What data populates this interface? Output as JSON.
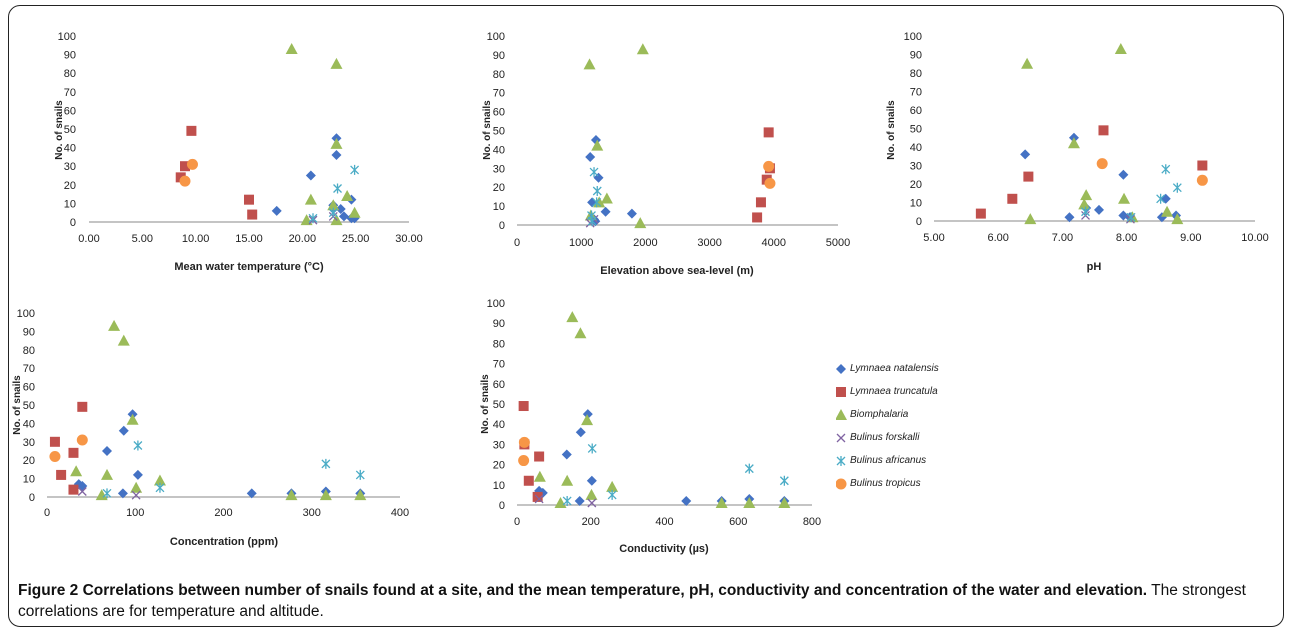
{
  "legend_entries": [
    {
      "name": "Lymnaea natalensis",
      "marker": "diamond",
      "color": "#4472C4"
    },
    {
      "name": "Lymnaea truncatula",
      "marker": "square",
      "color": "#C0504D"
    },
    {
      "name": "Biomphalaria",
      "marker": "triangle",
      "color": "#9BBB59"
    },
    {
      "name": "Bulinus forskalli",
      "marker": "x",
      "color": "#8064A2"
    },
    {
      "name": "Bulinus africanus",
      "marker": "star",
      "color": "#4BACC6"
    },
    {
      "name": "Bulinus tropicus",
      "marker": "circle",
      "color": "#F79646"
    }
  ],
  "caption": {
    "bold": "Figure 2 Correlations between number of snails found at a site, and the mean temperature, pH, conductivity and concentration of the water and elevation.",
    "text": " The strongest correlations are for temperature and altitude."
  },
  "chart_data": [
    {
      "type": "scatter",
      "xlabel": "Mean water temperature (°C)",
      "ylabel": "No. of snails",
      "xlim": [
        0,
        30
      ],
      "ylim": [
        0,
        100
      ],
      "xticks": [
        "0.00",
        "5.00",
        "10.00",
        "15.00",
        "20.00",
        "25.00",
        "30.00"
      ],
      "yticks": [
        "0",
        "10",
        "20",
        "30",
        "40",
        "50",
        "60",
        "70",
        "80",
        "90",
        "100"
      ],
      "series": [
        {
          "name": "Lymnaea natalensis",
          "points": [
            [
              17.6,
              6
            ],
            [
              20.8,
              25
            ],
            [
              22.9,
              7
            ],
            [
              23.2,
              45
            ],
            [
              23.2,
              36
            ],
            [
              23.6,
              7
            ],
            [
              23.9,
              3
            ],
            [
              24.6,
              12
            ],
            [
              24.6,
              2
            ],
            [
              22.9,
              9
            ],
            [
              24.9,
              2
            ]
          ]
        },
        {
          "name": "Lymnaea truncatula",
          "points": [
            [
              8.6,
              24
            ],
            [
              9.0,
              30
            ],
            [
              9.6,
              49
            ],
            [
              15.0,
              12
            ],
            [
              15.3,
              4
            ]
          ]
        },
        {
          "name": "Biomphalaria",
          "points": [
            [
              19.0,
              93
            ],
            [
              23.2,
              85
            ],
            [
              23.2,
              42
            ],
            [
              20.8,
              12
            ],
            [
              24.2,
              14
            ],
            [
              20.4,
              1
            ],
            [
              23.2,
              1
            ],
            [
              24.9,
              5
            ],
            [
              22.9,
              9
            ]
          ]
        },
        {
          "name": "Bulinus forskalli",
          "points": [
            [
              21.0,
              1
            ],
            [
              22.9,
              3
            ]
          ]
        },
        {
          "name": "Bulinus africanus",
          "points": [
            [
              24.9,
              28
            ],
            [
              23.3,
              18
            ],
            [
              22.9,
              5
            ],
            [
              21.0,
              2
            ]
          ]
        },
        {
          "name": "Bulinus tropicus",
          "points": [
            [
              9.0,
              22
            ],
            [
              9.7,
              31
            ]
          ]
        }
      ]
    },
    {
      "type": "scatter",
      "xlabel": "Elevation above sea-level (m)",
      "ylabel": "No. of snails",
      "xlim": [
        0,
        5000
      ],
      "ylim": [
        0,
        100
      ],
      "xticks": [
        "0",
        "1000",
        "2000",
        "3000",
        "4000",
        "5000"
      ],
      "yticks": [
        "0",
        "10",
        "20",
        "30",
        "40",
        "50",
        "60",
        "70",
        "80",
        "90",
        "100"
      ],
      "series": [
        {
          "name": "Lymnaea natalensis",
          "points": [
            [
              1230,
              45
            ],
            [
              1140,
              36
            ],
            [
              1270,
              25
            ],
            [
              1380,
              7
            ],
            [
              1790,
              6
            ],
            [
              1170,
              12
            ],
            [
              1200,
              3
            ],
            [
              1220,
              2
            ]
          ]
        },
        {
          "name": "Lymnaea truncatula",
          "points": [
            [
              3920,
              49
            ],
            [
              3940,
              30
            ],
            [
              3890,
              24
            ],
            [
              3800,
              12
            ],
            [
              3740,
              4
            ]
          ]
        },
        {
          "name": "Biomphalaria",
          "points": [
            [
              1960,
              93
            ],
            [
              1130,
              85
            ],
            [
              1250,
              42
            ],
            [
              1400,
              14
            ],
            [
              1280,
              12
            ],
            [
              1920,
              1
            ],
            [
              1150,
              5
            ]
          ]
        },
        {
          "name": "Bulinus forskalli",
          "points": [
            [
              1140,
              1
            ],
            [
              1200,
              3
            ]
          ]
        },
        {
          "name": "Bulinus africanus",
          "points": [
            [
              1200,
              28
            ],
            [
              1250,
              18
            ],
            [
              1160,
              5
            ],
            [
              1170,
              2
            ],
            [
              1240,
              12
            ]
          ]
        },
        {
          "name": "Bulinus tropicus",
          "points": [
            [
              3920,
              31
            ],
            [
              3940,
              22
            ]
          ]
        }
      ]
    },
    {
      "type": "scatter",
      "xlabel": "pH",
      "ylabel": "No. of snails",
      "xlim": [
        5,
        10
      ],
      "ylim": [
        0,
        100
      ],
      "xticks": [
        "5.00",
        "6.00",
        "7.00",
        "8.00",
        "9.00",
        "10.00"
      ],
      "yticks": [
        "0",
        "10",
        "20",
        "30",
        "40",
        "50",
        "60",
        "70",
        "80",
        "90",
        "100"
      ],
      "series": [
        {
          "name": "Lymnaea natalensis",
          "points": [
            [
              7.18,
              45
            ],
            [
              6.42,
              36
            ],
            [
              7.95,
              25
            ],
            [
              8.61,
              12
            ],
            [
              7.37,
              7
            ],
            [
              7.57,
              6
            ],
            [
              7.11,
              2
            ],
            [
              7.95,
              3
            ],
            [
              8.05,
              2
            ],
            [
              8.55,
              2
            ],
            [
              8.77,
              3
            ]
          ]
        },
        {
          "name": "Lymnaea truncatula",
          "points": [
            [
              7.64,
              49
            ],
            [
              9.18,
              30
            ],
            [
              6.47,
              24
            ],
            [
              6.22,
              12
            ],
            [
              5.73,
              4
            ]
          ]
        },
        {
          "name": "Biomphalaria",
          "points": [
            [
              7.91,
              93
            ],
            [
              6.45,
              85
            ],
            [
              7.18,
              42
            ],
            [
              7.37,
              14
            ],
            [
              7.96,
              12
            ],
            [
              7.34,
              9
            ],
            [
              6.5,
              1
            ],
            [
              8.63,
              5
            ],
            [
              8.09,
              2
            ],
            [
              8.79,
              1
            ]
          ]
        },
        {
          "name": "Bulinus forskalli",
          "points": [
            [
              8.06,
              1
            ],
            [
              7.36,
              3
            ]
          ]
        },
        {
          "name": "Bulinus africanus",
          "points": [
            [
              8.61,
              28
            ],
            [
              8.79,
              18
            ],
            [
              8.53,
              12
            ],
            [
              7.36,
              5
            ],
            [
              8.07,
              2
            ]
          ]
        },
        {
          "name": "Bulinus tropicus",
          "points": [
            [
              7.62,
              31
            ],
            [
              9.18,
              22
            ]
          ]
        }
      ]
    },
    {
      "type": "scatter",
      "xlabel": "Concentration (ppm)",
      "ylabel": "No. of snails",
      "xlim": [
        0,
        400
      ],
      "ylim": [
        0,
        100
      ],
      "xticks": [
        "0",
        "100",
        "200",
        "300",
        "400"
      ],
      "yticks": [
        "0",
        "10",
        "20",
        "30",
        "40",
        "50",
        "60",
        "70",
        "80",
        "90",
        "100"
      ],
      "series": [
        {
          "name": "Lymnaea natalensis",
          "points": [
            [
              97,
              45
            ],
            [
              87,
              36
            ],
            [
              68,
              25
            ],
            [
              103,
              12
            ],
            [
              36,
              7
            ],
            [
              40,
              6
            ],
            [
              86,
              2
            ],
            [
              232,
              2
            ],
            [
              277,
              2
            ],
            [
              316,
              3
            ],
            [
              355,
              2
            ]
          ]
        },
        {
          "name": "Lymnaea truncatula",
          "points": [
            [
              40,
              49
            ],
            [
              9,
              30
            ],
            [
              30,
              24
            ],
            [
              16,
              12
            ],
            [
              30,
              4
            ]
          ]
        },
        {
          "name": "Biomphalaria",
          "points": [
            [
              76,
              93
            ],
            [
              87,
              85
            ],
            [
              97,
              42
            ],
            [
              33,
              14
            ],
            [
              68,
              12
            ],
            [
              128,
              9
            ],
            [
              62,
              1
            ],
            [
              101,
              5
            ],
            [
              277,
              1
            ],
            [
              316,
              1
            ],
            [
              355,
              1
            ]
          ]
        },
        {
          "name": "Bulinus forskalli",
          "points": [
            [
              101,
              1
            ],
            [
              40,
              3
            ]
          ]
        },
        {
          "name": "Bulinus africanus",
          "points": [
            [
              103,
              28
            ],
            [
              316,
              18
            ],
            [
              355,
              12
            ],
            [
              128,
              5
            ],
            [
              68,
              2
            ]
          ]
        },
        {
          "name": "Bulinus tropicus",
          "points": [
            [
              40,
              31
            ],
            [
              9,
              22
            ]
          ]
        }
      ]
    },
    {
      "type": "scatter",
      "xlabel": "Conductivity (µs)",
      "ylabel": "No. of snails",
      "xlim": [
        0,
        800
      ],
      "ylim": [
        0,
        100
      ],
      "xticks": [
        "0",
        "200",
        "400",
        "600",
        "800"
      ],
      "yticks": [
        "0",
        "10",
        "20",
        "30",
        "40",
        "50",
        "60",
        "70",
        "80",
        "90",
        "100"
      ],
      "series": [
        {
          "name": "Lymnaea natalensis",
          "points": [
            [
              192,
              45
            ],
            [
              173,
              36
            ],
            [
              135,
              25
            ],
            [
              203,
              12
            ],
            [
              60,
              7
            ],
            [
              70,
              6
            ],
            [
              170,
              2
            ],
            [
              459,
              2
            ],
            [
              555,
              2
            ],
            [
              630,
              3
            ],
            [
              725,
              2
            ]
          ]
        },
        {
          "name": "Lymnaea truncatula",
          "points": [
            [
              18,
              49
            ],
            [
              20,
              30
            ],
            [
              60,
              24
            ],
            [
              32,
              12
            ],
            [
              56,
              4
            ]
          ]
        },
        {
          "name": "Biomphalaria",
          "points": [
            [
              150,
              93
            ],
            [
              172,
              85
            ],
            [
              190,
              42
            ],
            [
              62,
              14
            ],
            [
              136,
              12
            ],
            [
              258,
              9
            ],
            [
              118,
              1
            ],
            [
              202,
              5
            ],
            [
              555,
              1
            ],
            [
              630,
              1
            ],
            [
              725,
              1
            ]
          ]
        },
        {
          "name": "Bulinus forskalli",
          "points": [
            [
              203,
              1
            ],
            [
              60,
              3
            ]
          ]
        },
        {
          "name": "Bulinus africanus",
          "points": [
            [
              204,
              28
            ],
            [
              630,
              18
            ],
            [
              725,
              12
            ],
            [
              258,
              5
            ],
            [
              136,
              2
            ]
          ]
        },
        {
          "name": "Bulinus tropicus",
          "points": [
            [
              20,
              31
            ],
            [
              18,
              22
            ]
          ]
        }
      ]
    }
  ]
}
